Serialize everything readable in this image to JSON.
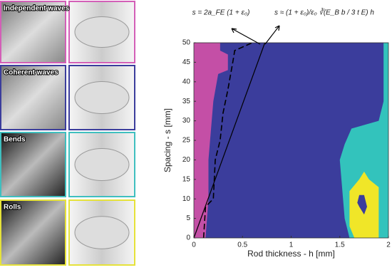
{
  "panels": [
    {
      "label": "Independent waves",
      "color": "#d35fb7"
    },
    {
      "label": "Coherent waves",
      "color": "#3b3d9c"
    },
    {
      "label": "Bends",
      "color": "#3fbfbf"
    },
    {
      "label": "Rolls",
      "color": "#e6e23a"
    }
  ],
  "chart_data": {
    "type": "region",
    "xlabel": "Rod thickness - h [mm]",
    "ylabel": "Spacing - s [mm]",
    "xlim": [
      0,
      2
    ],
    "ylim": [
      0,
      50
    ],
    "xticks": [
      0,
      0.5,
      1,
      1.5,
      2
    ],
    "yticks": [
      0,
      5,
      10,
      15,
      20,
      25,
      30,
      35,
      40,
      45,
      50
    ],
    "background": "#3b3d9c",
    "annotations": [
      "s = 2a_FE (1 + ε₀)",
      "s ≈ (1 + ε₀)/ε₀ ∛(E_B b / 3 t E) h"
    ],
    "regions": [
      {
        "color": "#c44fa6",
        "x": [
          0,
          0.12,
          0.15,
          0.15,
          0.2,
          0.25,
          0.35,
          0.35,
          0.27,
          0.27,
          0
        ],
        "y": [
          0,
          0,
          10,
          20,
          35,
          42,
          43,
          47,
          48,
          50,
          50
        ]
      },
      {
        "color": "#33c3bc",
        "x": [
          1.6,
          1.55,
          1.5,
          1.55,
          1.62,
          1.9,
          1.95,
          1.95,
          2,
          2
        ],
        "y": [
          0,
          5,
          20,
          24,
          28,
          30,
          35,
          50,
          50,
          0
        ]
      },
      {
        "color": "#f0e628",
        "x": [
          1.65,
          1.6,
          1.6,
          1.7,
          1.75,
          1.8,
          1.9,
          1.9
        ],
        "y": [
          0,
          3,
          12,
          15,
          17,
          15,
          13,
          0
        ]
      },
      {
        "color": "#3b3d9c",
        "x": [
          1.7,
          1.75,
          1.78,
          1.75,
          1.7,
          1.68
        ],
        "y": [
          8,
          6,
          8,
          11,
          11,
          9
        ]
      }
    ],
    "series": [
      {
        "style": "dashed",
        "color": "#000000",
        "x": [
          0.1,
          0.12,
          0.2,
          0.22,
          0.27,
          0.3,
          0.35,
          0.4,
          0.42,
          0.6
        ],
        "y": [
          0,
          8,
          10,
          20,
          25,
          32,
          38,
          45,
          48,
          50
        ]
      },
      {
        "style": "solid",
        "color": "#000000",
        "x": [
          0,
          0.73
        ],
        "y": [
          0,
          50
        ]
      }
    ]
  }
}
